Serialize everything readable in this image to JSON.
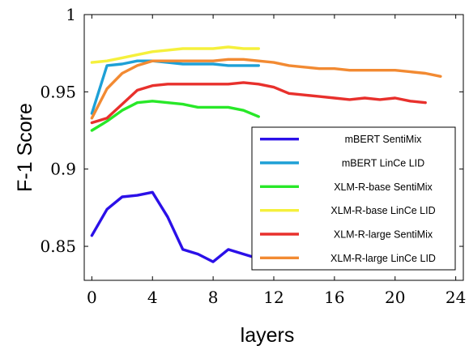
{
  "chart_data": {
    "type": "line",
    "xlabel": "layers",
    "ylabel": "F-1 Score",
    "xlim": [
      -0.5,
      24.5
    ],
    "ylim": [
      0.828,
      1.0
    ],
    "xticks": [
      0,
      4,
      8,
      12,
      16,
      20,
      24
    ],
    "yticks": [
      0.85,
      0.9,
      0.95,
      1.0
    ],
    "xtick_labels": [
      "0",
      "4",
      "8",
      "12",
      "16",
      "20",
      "24"
    ],
    "ytick_labels": [
      "0.85",
      "0.9",
      "0.95",
      "1"
    ],
    "grid": false,
    "legend_position": "lower-right",
    "series": [
      {
        "name": "mBERT SentiMix",
        "color": "#2b10e8",
        "x": [
          0,
          1,
          2,
          3,
          4,
          5,
          6,
          7,
          8,
          9,
          10,
          11
        ],
        "y": [
          0.857,
          0.874,
          0.882,
          0.883,
          0.885,
          0.869,
          0.848,
          0.845,
          0.84,
          0.848,
          0.845,
          0.842
        ]
      },
      {
        "name": "mBERT LinCe LID",
        "color": "#1ea0d6",
        "x": [
          0,
          1,
          2,
          3,
          4,
          5,
          6,
          7,
          8,
          9,
          10,
          11
        ],
        "y": [
          0.936,
          0.967,
          0.968,
          0.97,
          0.97,
          0.969,
          0.968,
          0.968,
          0.968,
          0.967,
          0.967,
          0.967
        ]
      },
      {
        "name": "XLM-R-base SentiMix",
        "color": "#28e828",
        "x": [
          0,
          1,
          2,
          3,
          4,
          5,
          6,
          7,
          8,
          9,
          10,
          11
        ],
        "y": [
          0.925,
          0.931,
          0.938,
          0.943,
          0.944,
          0.943,
          0.942,
          0.94,
          0.94,
          0.94,
          0.938,
          0.934
        ]
      },
      {
        "name": "XLM-R-base LinCe LID",
        "color": "#f5f03c",
        "x": [
          0,
          1,
          2,
          3,
          4,
          5,
          6,
          7,
          8,
          9,
          10,
          11
        ],
        "y": [
          0.969,
          0.97,
          0.972,
          0.974,
          0.976,
          0.977,
          0.978,
          0.978,
          0.978,
          0.979,
          0.978,
          0.978
        ]
      },
      {
        "name": "XLM-R-large SentiMix",
        "color": "#e8302c",
        "x": [
          0,
          1,
          2,
          3,
          4,
          5,
          6,
          7,
          8,
          9,
          10,
          11,
          12,
          13,
          14,
          15,
          16,
          17,
          18,
          19,
          20,
          21,
          22
        ],
        "y": [
          0.93,
          0.933,
          0.942,
          0.951,
          0.954,
          0.955,
          0.955,
          0.955,
          0.955,
          0.955,
          0.956,
          0.955,
          0.953,
          0.949,
          0.948,
          0.947,
          0.946,
          0.945,
          0.946,
          0.945,
          0.946,
          0.944,
          0.943
        ]
      },
      {
        "name": "XLM-R-large LinCe LID",
        "color": "#f28a32",
        "x": [
          0,
          1,
          2,
          3,
          4,
          5,
          6,
          7,
          8,
          9,
          10,
          11,
          12,
          13,
          14,
          15,
          16,
          17,
          18,
          19,
          20,
          21,
          22,
          23
        ],
        "y": [
          0.933,
          0.952,
          0.962,
          0.967,
          0.97,
          0.97,
          0.97,
          0.97,
          0.97,
          0.971,
          0.971,
          0.97,
          0.969,
          0.967,
          0.966,
          0.965,
          0.965,
          0.964,
          0.964,
          0.964,
          0.964,
          0.963,
          0.962,
          0.96
        ]
      }
    ]
  }
}
